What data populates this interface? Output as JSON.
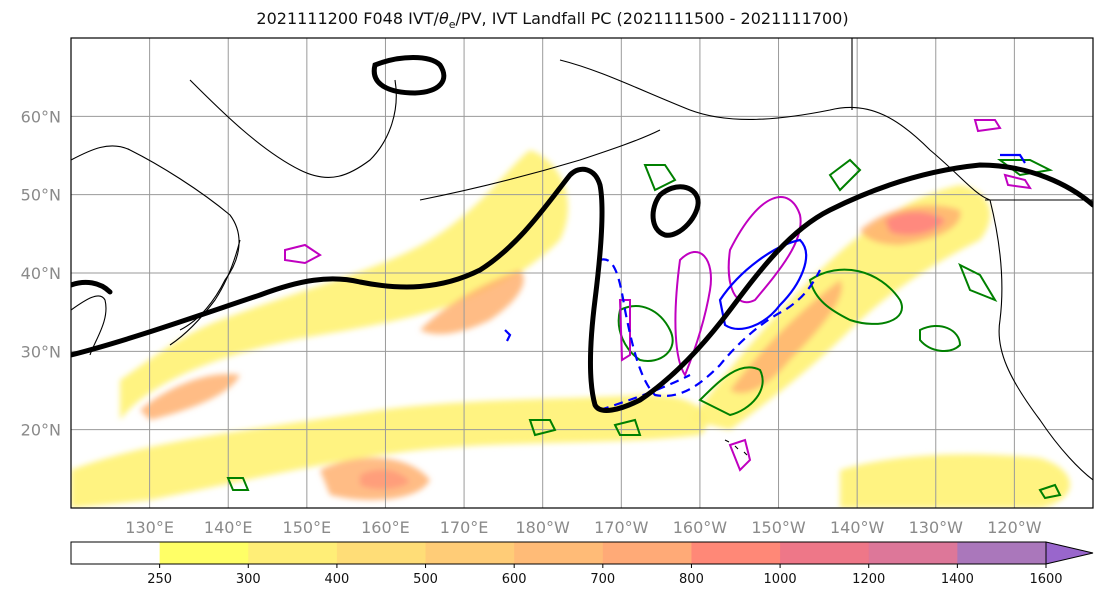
{
  "title_pre": "2021111200 F048 IVT/",
  "title_theta": "θ",
  "title_sub": "e",
  "title_post": "/PV, IVT Landfall PC (2021111500 - 2021111700)",
  "map": {
    "lon_labels": [
      "130°E",
      "140°E",
      "150°E",
      "160°E",
      "170°E",
      "180°W",
      "170°W",
      "160°W",
      "150°W",
      "140°W",
      "130°W",
      "120°W"
    ],
    "lon_values": [
      130,
      140,
      150,
      160,
      170,
      180,
      190,
      200,
      210,
      220,
      230,
      240
    ],
    "lat_labels": [
      "20°N",
      "30°N",
      "40°N",
      "50°N",
      "60°N"
    ],
    "lat_values": [
      20,
      30,
      40,
      50,
      60
    ],
    "extent": {
      "lon_min": 120,
      "lon_max": 250,
      "lat_min": 10,
      "lat_max": 70
    },
    "contour_colors": {
      "theta_e": "#000000",
      "pv_dashed": "#0000ff",
      "green": "#008000",
      "magenta": "#c000c0"
    }
  },
  "colorbar": {
    "ticks": [
      "250",
      "300",
      "400",
      "500",
      "600",
      "700",
      "800",
      "1000",
      "1200",
      "1400",
      "1600"
    ],
    "colors": [
      "#ffffff",
      "#ffff66",
      "#ffee77",
      "#ffdd77",
      "#ffcc77",
      "#ffbb77",
      "#ffaa77",
      "#ff8877",
      "#ee7788",
      "#dd7799",
      "#aa77bb",
      "#9966cc"
    ]
  }
}
